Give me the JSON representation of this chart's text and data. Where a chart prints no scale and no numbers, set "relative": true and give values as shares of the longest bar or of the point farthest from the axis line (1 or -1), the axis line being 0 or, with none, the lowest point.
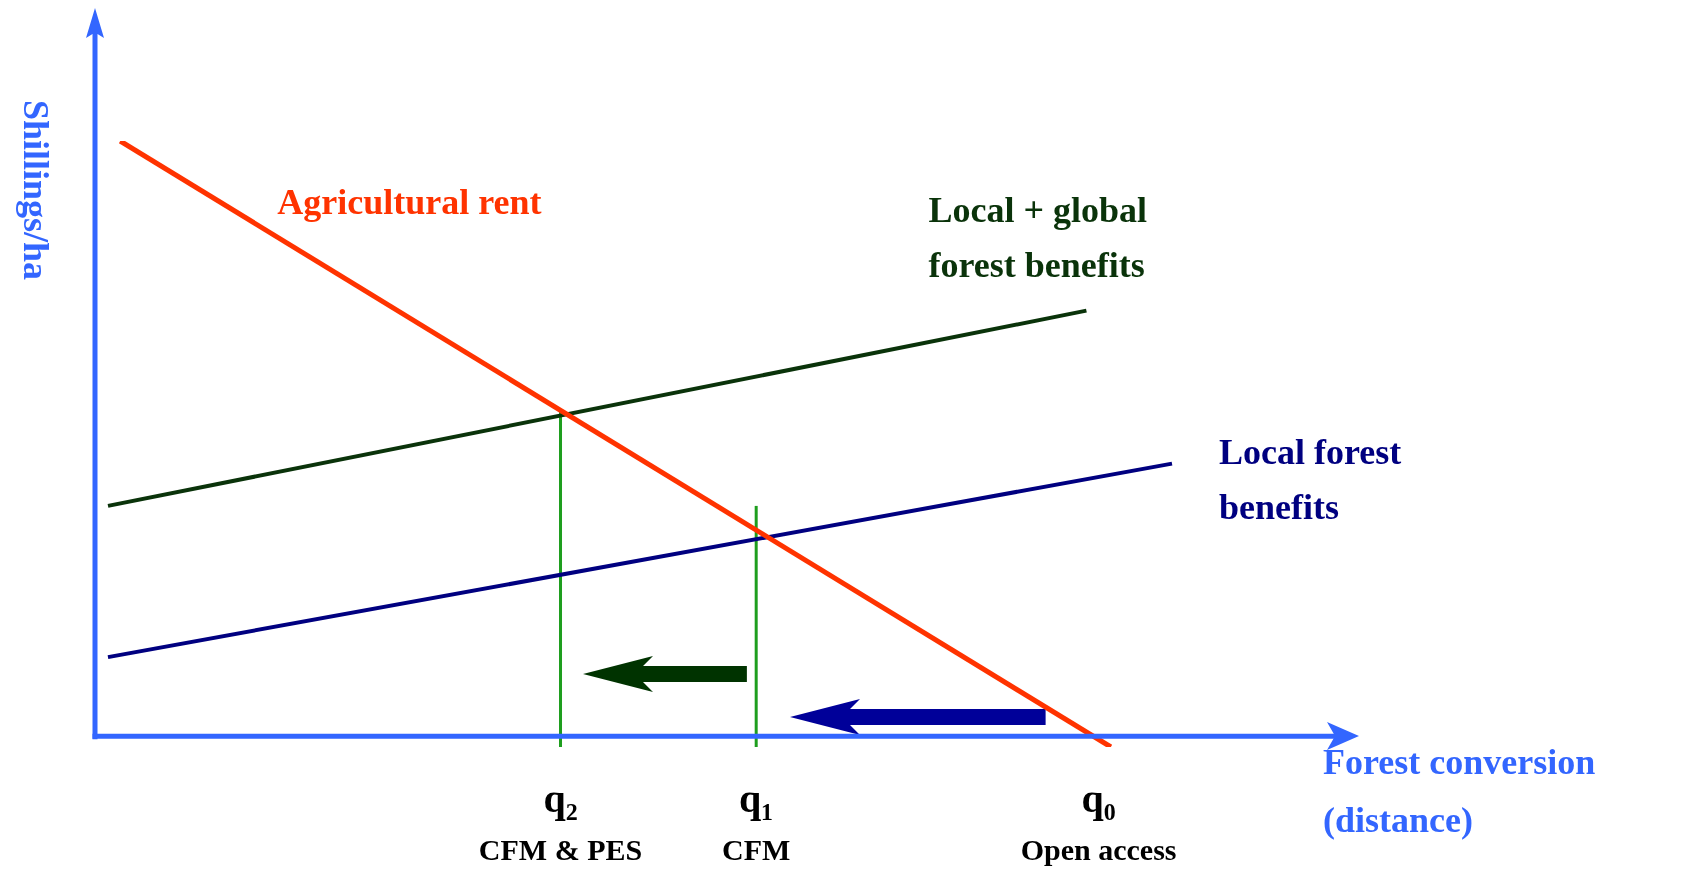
{
  "chart_data": {
    "type": "line",
    "relative": true,
    "xlabel": "Forest conversion (distance)",
    "ylabel": "Shillings/ha",
    "categories": [
      null,
      null,
      null,
      null,
      null,
      null,
      null,
      null,
      null,
      null,
      null,
      null,
      null,
      null,
      null,
      null,
      null,
      null,
      null,
      null,
      null,
      null,
      null,
      null,
      null,
      null,
      null,
      null,
      null,
      null,
      null,
      null,
      null,
      null,
      null,
      null,
      null,
      "q₂ CFM & PES",
      null,
      null,
      null,
      null,
      null,
      null,
      null,
      null,
      null,
      null,
      null,
      null,
      null,
      null,
      null,
      "q₁ CFM",
      null,
      null,
      null,
      null,
      null,
      null,
      null,
      null,
      null,
      null,
      null,
      null,
      null,
      null,
      null,
      null,
      null,
      null,
      null,
      null,
      null,
      null,
      null,
      null,
      null,
      null,
      null,
      "q₀ Open access",
      null,
      null,
      null,
      null,
      null,
      null,
      null,
      null,
      null,
      null,
      null,
      null,
      null,
      null,
      null,
      null,
      null,
      null,
      null
    ],
    "series": [
      {
        "name": "Agricultural rent",
        "color": "#ff3300",
        "values": [
          null,
          1,
          null,
          null,
          null,
          null,
          null,
          null,
          null,
          null,
          null,
          null,
          null,
          null,
          null,
          null,
          null,
          null,
          null,
          null,
          null,
          null,
          null,
          null,
          null,
          null,
          null,
          null,
          null,
          null,
          null,
          null,
          null,
          null,
          null,
          null,
          null,
          null,
          null,
          null,
          null,
          null,
          null,
          null,
          null,
          null,
          null,
          null,
          null,
          null,
          null,
          null,
          null,
          null,
          null,
          null,
          null,
          null,
          null,
          null,
          null,
          null,
          null,
          null,
          null,
          null,
          null,
          null,
          null,
          null,
          null,
          null,
          null,
          null,
          null,
          null,
          null,
          null,
          null,
          null,
          null,
          null,
          -0.018,
          null,
          null,
          null,
          null,
          null,
          null,
          null,
          null,
          null,
          null,
          null,
          null,
          null,
          null,
          null,
          null,
          null,
          null
        ]
      },
      {
        "name": "Local + global forest benefits",
        "color": "#0a330a",
        "values": [
          0.387,
          null,
          null,
          null,
          null,
          null,
          null,
          null,
          null,
          null,
          null,
          null,
          null,
          null,
          null,
          null,
          null,
          null,
          null,
          null,
          null,
          null,
          null,
          null,
          null,
          null,
          null,
          null,
          null,
          null,
          null,
          null,
          null,
          null,
          null,
          null,
          null,
          null,
          null,
          null,
          null,
          null,
          null,
          null,
          null,
          null,
          null,
          null,
          null,
          null,
          null,
          null,
          null,
          null,
          null,
          null,
          null,
          null,
          null,
          null,
          null,
          null,
          null,
          null,
          null,
          null,
          null,
          null,
          null,
          null,
          null,
          null,
          null,
          null,
          null,
          null,
          null,
          null,
          null,
          null,
          0.715,
          null,
          null,
          null,
          null,
          null,
          null,
          null,
          null,
          null,
          null,
          null,
          null,
          null,
          null,
          null,
          null,
          null,
          null,
          null,
          null
        ]
      },
      {
        "name": "Local forest benefits",
        "color": "#000080",
        "values": [
          0.133,
          null,
          null,
          null,
          null,
          null,
          null,
          null,
          null,
          null,
          null,
          null,
          null,
          null,
          null,
          null,
          null,
          null,
          null,
          null,
          null,
          null,
          null,
          null,
          null,
          null,
          null,
          null,
          null,
          null,
          null,
          null,
          null,
          null,
          null,
          null,
          null,
          null,
          null,
          null,
          null,
          null,
          null,
          null,
          null,
          null,
          null,
          null,
          null,
          null,
          null,
          null,
          null,
          null,
          null,
          null,
          null,
          null,
          null,
          null,
          null,
          null,
          null,
          null,
          null,
          null,
          null,
          null,
          null,
          null,
          null,
          null,
          null,
          null,
          null,
          null,
          null,
          null,
          null,
          null,
          null,
          null,
          null,
          null,
          null,
          null,
          null,
          0.458,
          null,
          null,
          null,
          null,
          null,
          null,
          null,
          null,
          null,
          null,
          null,
          null,
          null
        ]
      },
      {
        "color": "#1e9e1e",
        "x": [
          "q₂ CFM & PES",
          "q₂ CFM & PES"
        ],
        "values": [
          -0.018,
          0.545
        ]
      },
      {
        "color": "#1e9e1e",
        "x": [
          "q₁ CFM",
          "q₁ CFM"
        ],
        "values": [
          -0.018,
          0.387
        ]
      }
    ],
    "legend": false,
    "marker": "none"
  }
}
